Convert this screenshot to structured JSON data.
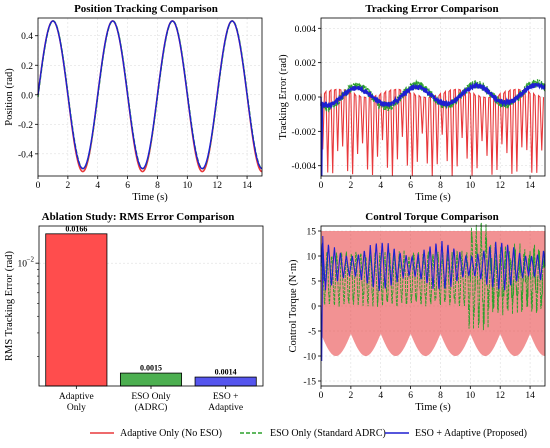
{
  "legend": {
    "placement": "bottom-center",
    "items": [
      {
        "label": "Adaptive Only (No ESO)",
        "color": "#e8383b",
        "dash": "solid"
      },
      {
        "label": "ESO Only (Standard ADRC)",
        "color": "#2ca02c",
        "dash": "dashed"
      },
      {
        "label": "ESO + Adaptive (Proposed)",
        "color": "#1f1fd1",
        "dash": "solid"
      }
    ]
  },
  "colors": {
    "adaptive": "#e8383b",
    "eso": "#2ca02c",
    "proposed": "#1f1fd1",
    "bar_adaptive": "#ff4d4d",
    "bar_eso": "#4caf50",
    "bar_proposed": "#5555ee"
  },
  "chart_data": [
    {
      "type": "line",
      "title": "Position Tracking Comparison",
      "xlabel": "Time (s)",
      "ylabel": "Position (rad)",
      "xlim": [
        0,
        15
      ],
      "ylim": [
        -0.55,
        0.52
      ],
      "xticks": [
        "0",
        "2",
        "4",
        "6",
        "8",
        "10",
        "12",
        "14"
      ],
      "yticks": [
        "-0.4",
        "-0.2",
        "0.0",
        "0.2",
        "0.4"
      ],
      "grid": true,
      "signal": {
        "form": "sine",
        "amplitude": 0.5,
        "period_s": 4.0
      },
      "series": [
        {
          "name": "Adaptive Only (No ESO)",
          "style": "solid",
          "peak_overshoot_rad": 0.02
        },
        {
          "name": "ESO Only (Standard ADRC)",
          "style": "dashed"
        },
        {
          "name": "ESO + Adaptive (Proposed)",
          "style": "solid"
        }
      ]
    },
    {
      "type": "line",
      "title": "Tracking Error Comparison",
      "xlabel": "Time (s)",
      "ylabel": "Tracking Error (rad)",
      "xlim": [
        0,
        15
      ],
      "ylim": [
        -0.0046,
        0.0046
      ],
      "xticks": [
        "0",
        "2",
        "4",
        "6",
        "8",
        "10",
        "12",
        "14"
      ],
      "yticks": [
        "-0.004",
        "-0.002",
        "0.000",
        "0.002",
        "0.004"
      ],
      "grid": true,
      "series": [
        {
          "name": "Adaptive Only (No ESO)",
          "style": "solid",
          "baseline_rad": 0.0004,
          "spike_min_rad": -0.0046,
          "spikes_per_second": 3
        },
        {
          "name": "ESO Only (Standard ADRC)",
          "style": "dashed",
          "wave_amplitude_rad": 0.0006,
          "wave_period_s": 4.0
        },
        {
          "name": "ESO + Adaptive (Proposed)",
          "style": "solid",
          "wave_amplitude_rad": 0.0005,
          "wave_period_s": 4.0
        }
      ]
    },
    {
      "type": "bar",
      "title": "Ablation Study: RMS Error Comparison",
      "xlabel": "",
      "ylabel": "RMS Tracking Error (rad)",
      "yscale": "log",
      "ylim": [
        0.0012,
        0.019
      ],
      "ytick_major": "10",
      "ytick_major_exp": "−2",
      "grid": true,
      "categories": [
        [
          "Adaptive",
          "Only"
        ],
        [
          "ESO Only",
          "(ADRC)"
        ],
        [
          "ESO +",
          "Adaptive"
        ]
      ],
      "values": [
        0.0166,
        0.0015,
        0.0014
      ],
      "value_labels": [
        "0.0166",
        "0.0015",
        "0.0014"
      ]
    },
    {
      "type": "line",
      "title": "Control Torque Comparison",
      "xlabel": "Time (s)",
      "ylabel": "Control Torque (N·m)",
      "xlim": [
        0,
        15
      ],
      "ylim": [
        -16,
        16
      ],
      "xticks": [
        "0",
        "2",
        "4",
        "6",
        "8",
        "10",
        "12",
        "14"
      ],
      "yticks": [
        "-15",
        "-10",
        "-5",
        "0",
        "5",
        "10",
        "15"
      ],
      "grid": true,
      "series": [
        {
          "name": "Adaptive Only (No ESO)",
          "style": "solid",
          "saturation_max_nm": 15,
          "oscillation_min_nm": -10
        },
        {
          "name": "ESO Only (Standard ADRC)",
          "style": "dashed",
          "range_nm": [
            -3,
            14
          ]
        },
        {
          "name": "ESO + Adaptive (Proposed)",
          "style": "solid",
          "range_nm": [
            3,
            13
          ]
        }
      ]
    }
  ]
}
